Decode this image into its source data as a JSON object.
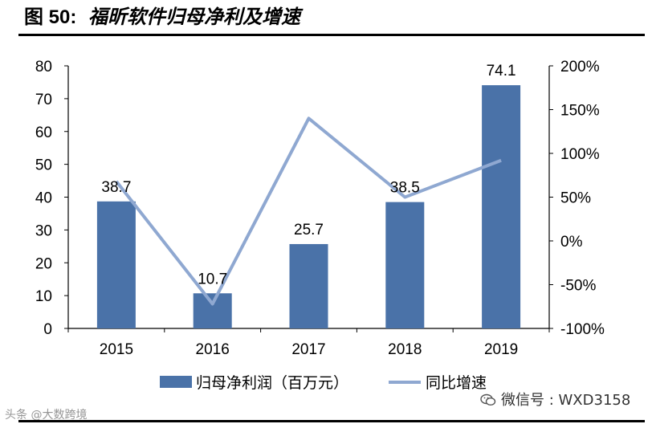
{
  "title": {
    "label": "图",
    "number": "50:",
    "text": "福昕软件归母净利及增速"
  },
  "chart_data": {
    "type": "bar",
    "categories": [
      "2015",
      "2016",
      "2017",
      "2018",
      "2019"
    ],
    "series": [
      {
        "name": "归母净利润（百万元）",
        "type": "bar",
        "axis": "left",
        "values": [
          38.7,
          10.7,
          25.7,
          38.5,
          74.1
        ],
        "data_labels": [
          "38.7",
          "10.7",
          "25.7",
          "38.5",
          "74.1"
        ]
      },
      {
        "name": "同比增速",
        "type": "line",
        "axis": "right",
        "values": [
          0.68,
          -0.72,
          1.4,
          0.5,
          0.92
        ]
      }
    ],
    "y_left": {
      "range": [
        0,
        80
      ],
      "ticks": [
        "0",
        "10",
        "20",
        "30",
        "40",
        "50",
        "60",
        "70",
        "80"
      ]
    },
    "y_right": {
      "range": [
        -1.0,
        2.0
      ],
      "ticks": [
        "-100%",
        "-50%",
        "0%",
        "50%",
        "100%",
        "150%",
        "200%"
      ]
    },
    "legend": [
      "归母净利润（百万元）",
      "同比增速"
    ],
    "legend_position": "bottom",
    "colors": {
      "bar": "#4a72a8",
      "line": "#8fa8d1"
    }
  },
  "watermarks": {
    "left": "头条 @大数跨境",
    "right": "微信号 : WXD3158"
  }
}
